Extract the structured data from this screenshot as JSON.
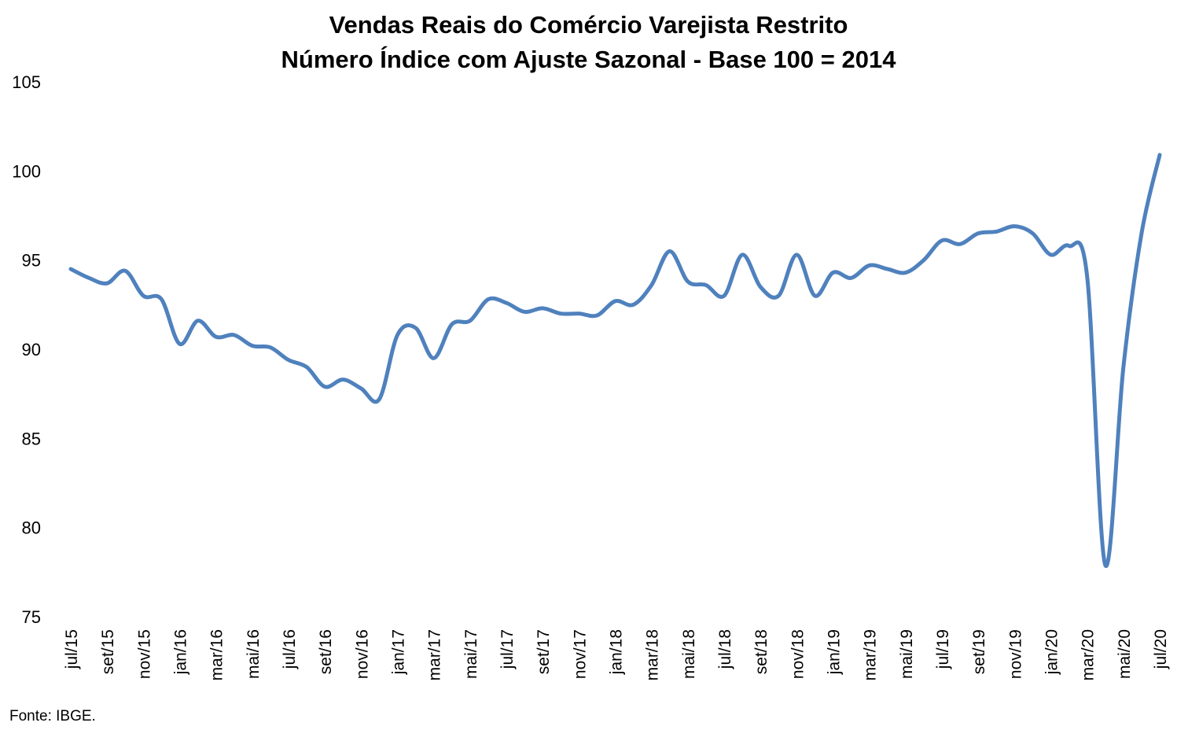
{
  "chart_data": {
    "type": "line",
    "title": "Vendas Reais do Comércio Varejista Restrito",
    "subtitle": "Número Índice com Ajuste Sazonal - Base 100 = 2014",
    "xlabel": "",
    "ylabel": "",
    "ylim": [
      75,
      105
    ],
    "yticks": [
      75,
      80,
      85,
      90,
      95,
      100,
      105
    ],
    "grid": false,
    "legend": "none",
    "x_tick_labels": [
      "jul/15",
      "set/15",
      "nov/15",
      "jan/16",
      "mar/16",
      "mai/16",
      "jul/16",
      "set/16",
      "nov/16",
      "jan/17",
      "mar/17",
      "mai/17",
      "jul/17",
      "set/17",
      "nov/17",
      "jan/18",
      "mar/18",
      "mai/18",
      "jul/18",
      "set/18",
      "nov/18",
      "jan/19",
      "mar/19",
      "mai/19",
      "jul/19",
      "set/19",
      "nov/19",
      "jan/20",
      "mar/20",
      "mai/20",
      "jul/20"
    ],
    "series": [
      {
        "name": "Vendas Reais",
        "color": "#4f81bd",
        "values": [
          94.5,
          94.0,
          93.7,
          94.4,
          93.0,
          92.8,
          90.3,
          91.6,
          90.7,
          90.8,
          90.2,
          90.1,
          89.4,
          89.0,
          87.9,
          88.3,
          87.8,
          87.2,
          90.8,
          91.2,
          89.5,
          91.4,
          91.6,
          92.8,
          92.6,
          92.1,
          92.3,
          92.0,
          92.0,
          91.9,
          92.7,
          92.5,
          93.6,
          95.5,
          93.8,
          93.6,
          93.0,
          95.3,
          93.5,
          93.0,
          95.3,
          93.0,
          94.3,
          94.0,
          94.7,
          94.5,
          94.3,
          95.0,
          96.1,
          95.9,
          96.5,
          96.6,
          96.9,
          96.5,
          95.3,
          95.8,
          94.1,
          77.9,
          89.0,
          96.5,
          100.9
        ]
      }
    ]
  },
  "source": "Fonte: IBGE."
}
